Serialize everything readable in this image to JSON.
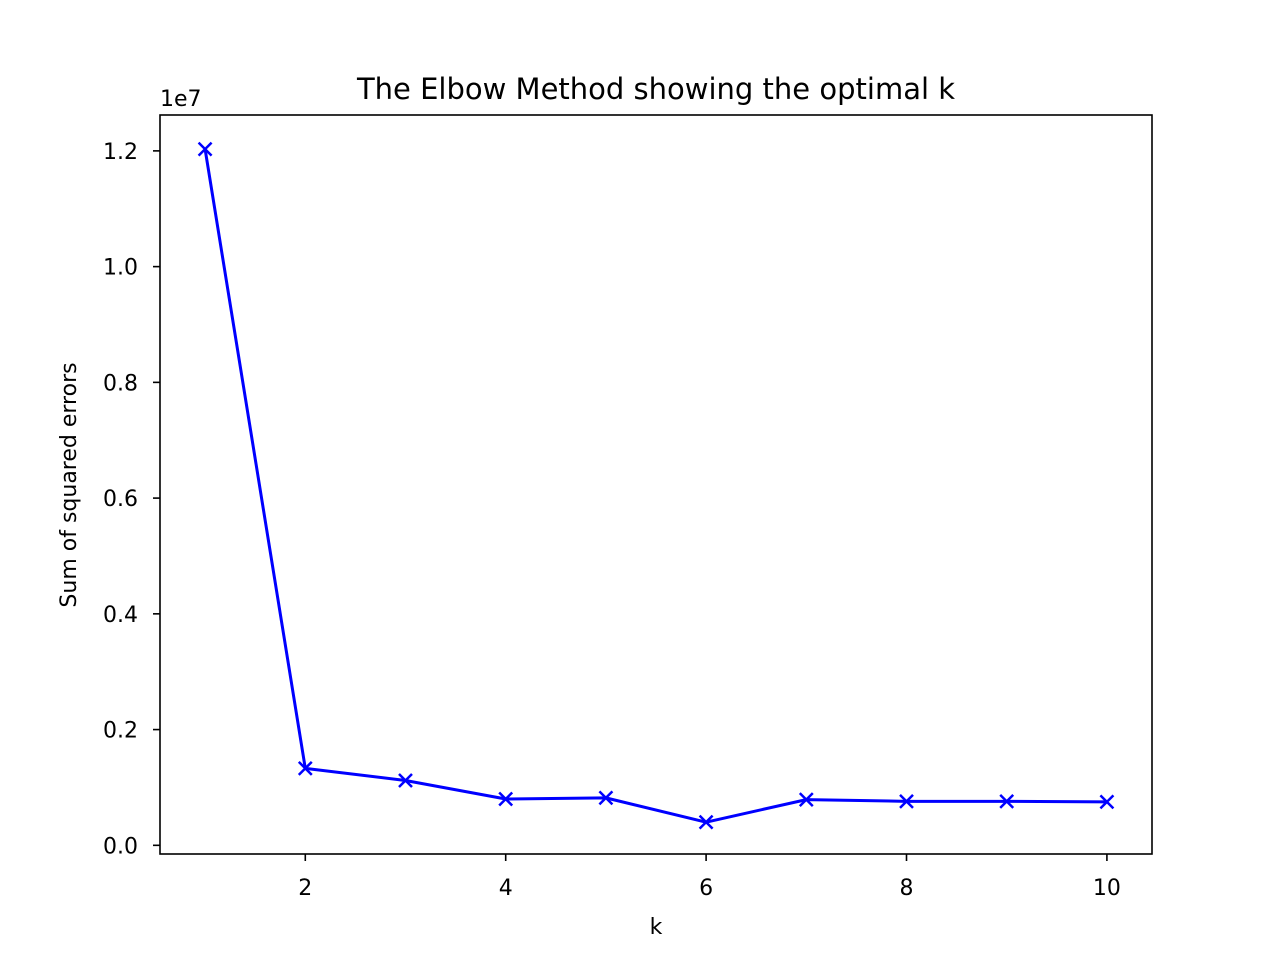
{
  "chart_data": {
    "type": "line",
    "title": "The Elbow Method showing the optimal k",
    "xlabel": "k",
    "ylabel": "Sum of squared errors",
    "y_offset_label": "1e7",
    "x_ticks": [
      "2",
      "4",
      "6",
      "8",
      "10"
    ],
    "x_tick_values": [
      2,
      4,
      6,
      8,
      10
    ],
    "y_ticks": [
      "0.0",
      "0.2",
      "0.4",
      "0.6",
      "0.8",
      "1.0",
      "1.2"
    ],
    "y_tick_values": [
      0,
      0.2,
      0.4,
      0.6,
      0.8,
      1.0,
      1.2
    ],
    "xlim": [
      0.55,
      10.45
    ],
    "ylim": [
      -0.015,
      1.262
    ],
    "grid": false,
    "series": [
      {
        "color": "#0000ff",
        "marker": "x",
        "x": [
          1,
          2,
          3,
          4,
          5,
          6,
          7,
          8,
          9,
          10
        ],
        "values": [
          1.203,
          0.133,
          0.112,
          0.08,
          0.082,
          0.04,
          0.079,
          0.076,
          0.076,
          0.075
        ]
      }
    ]
  }
}
